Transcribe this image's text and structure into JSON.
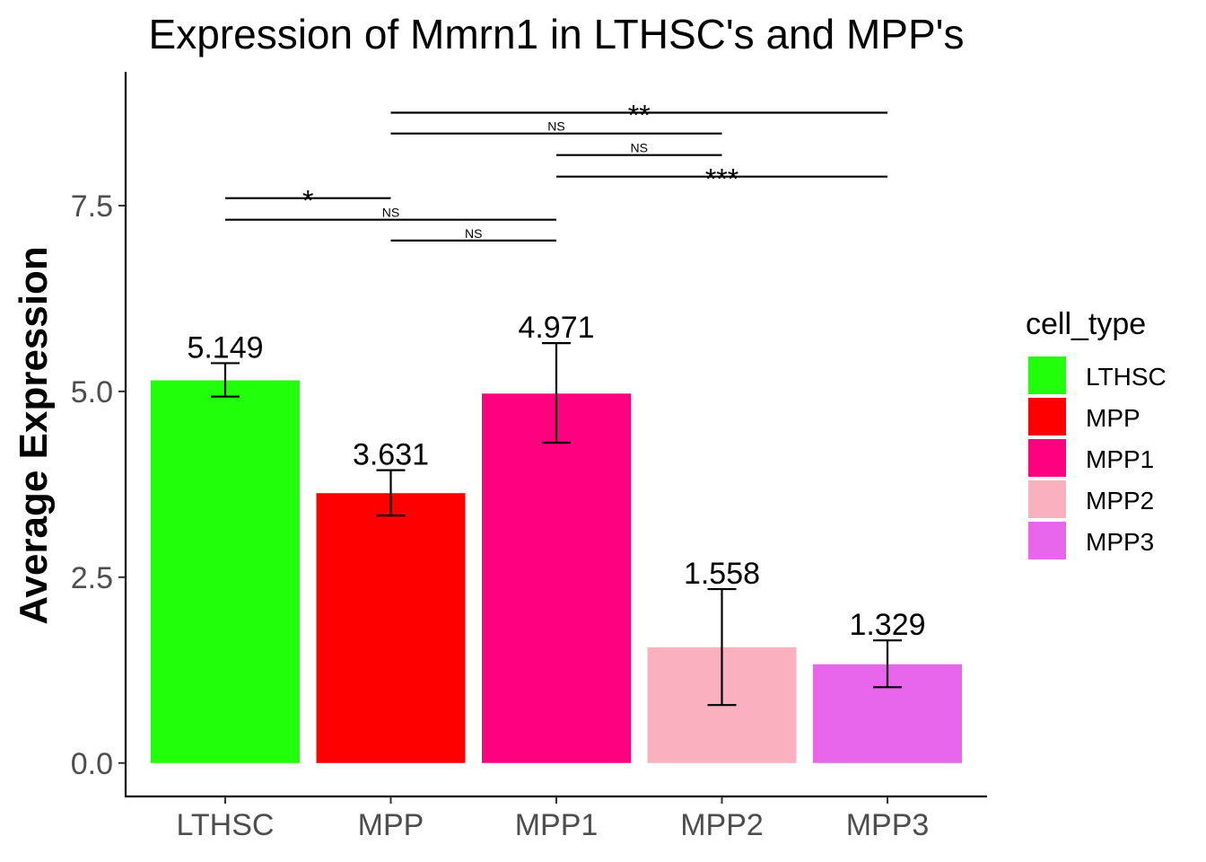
{
  "chart_data": {
    "type": "bar",
    "title": "Expression of Mmrn1 in LTHSC's and MPP's",
    "xlabel": "",
    "ylabel": "Average Expression",
    "categories": [
      "LTHSC",
      "MPP",
      "MPP1",
      "MPP2",
      "MPP3"
    ],
    "values": [
      5.149,
      3.631,
      4.971,
      1.558,
      1.329
    ],
    "value_labels": [
      "5.149",
      "3.631",
      "4.971",
      "1.558",
      "1.329"
    ],
    "error_low": [
      4.93,
      3.33,
      4.31,
      0.78,
      1.02
    ],
    "error_high": [
      5.38,
      3.94,
      5.65,
      2.34,
      1.65
    ],
    "colors": [
      "#22ff0b",
      "#ff0000",
      "#ff0080",
      "#fbb0c0",
      "#e766eb"
    ],
    "ylim": [
      -0.45,
      9.3
    ],
    "yticks": [
      0.0,
      2.5,
      5.0,
      7.5
    ],
    "ytick_labels": [
      "0.0",
      "2.5",
      "5.0",
      "7.5"
    ],
    "grid": false,
    "legend": {
      "title": "cell_type",
      "position": "right",
      "entries": [
        "LTHSC",
        "MPP",
        "MPP1",
        "MPP2",
        "MPP3"
      ]
    },
    "significance": [
      {
        "from": "MPP",
        "to": "MPP3",
        "y": 8.75,
        "label": "**"
      },
      {
        "from": "MPP",
        "to": "MPP2",
        "y": 8.47,
        "label": "NS"
      },
      {
        "from": "MPP1",
        "to": "MPP2",
        "y": 8.18,
        "label": "NS"
      },
      {
        "from": "MPP1",
        "to": "MPP3",
        "y": 7.89,
        "label": "***"
      },
      {
        "from": "LTHSC",
        "to": "MPP",
        "y": 7.6,
        "label": "*"
      },
      {
        "from": "LTHSC",
        "to": "MPP1",
        "y": 7.31,
        "label": "NS"
      },
      {
        "from": "MPP",
        "to": "MPP1",
        "y": 7.03,
        "label": "NS"
      }
    ]
  }
}
